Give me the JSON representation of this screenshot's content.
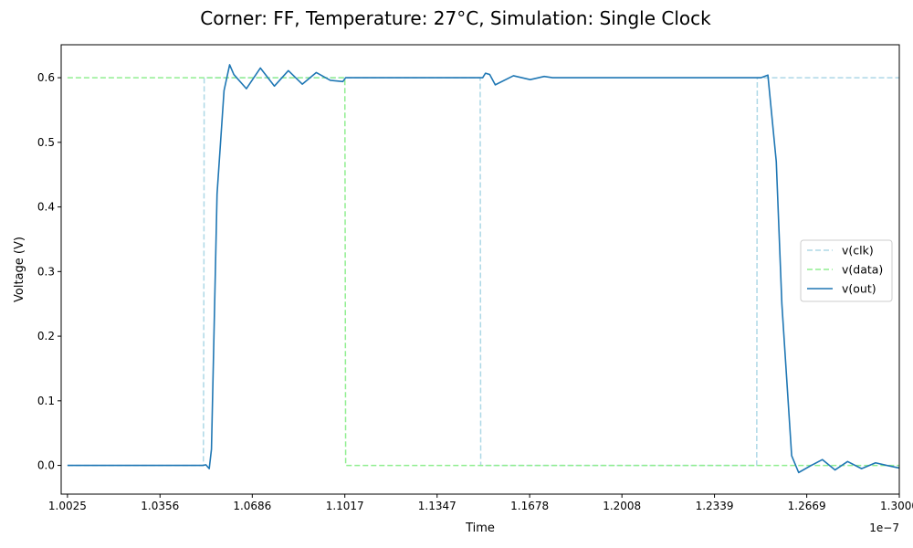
{
  "chart_data": {
    "type": "line",
    "title": "Corner: FF, Temperature: 27°C, Simulation: Single Clock",
    "xlabel": "Time",
    "ylabel": "Voltage (V)",
    "x_offset_label": "1e−7",
    "x_unit_scale": 1e-07,
    "xlim": [
      1.00025,
      1.3
    ],
    "ylim": [
      -0.0444,
      0.651
    ],
    "x_ticks": [
      1.0025,
      1.0356,
      1.0686,
      1.1017,
      1.1347,
      1.1678,
      1.2008,
      1.2339,
      1.2669,
      1.3
    ],
    "x_tick_labels": [
      "1.0025",
      "1.0356",
      "1.0686",
      "1.1017",
      "1.1347",
      "1.1678",
      "1.2008",
      "1.2339",
      "1.2669",
      "1.3000"
    ],
    "y_ticks": [
      0.0,
      0.1,
      0.2,
      0.3,
      0.4,
      0.5,
      0.6
    ],
    "y_tick_labels": [
      "0.0",
      "0.1",
      "0.2",
      "0.3",
      "0.4",
      "0.5",
      "0.6"
    ],
    "grid": false,
    "legend_position": "center-right",
    "series": [
      {
        "name": "v(clk)",
        "color": "#add8e6",
        "dash": true,
        "x": [
          1.0025,
          1.0511,
          1.0513,
          1.0514,
          1.1501,
          1.1503,
          1.249,
          1.2492,
          1.3
        ],
        "y": [
          0.0,
          0.0,
          0.3,
          0.6,
          0.6,
          0.0,
          0.0,
          0.6,
          0.6
        ]
      },
      {
        "name": "v(data)",
        "color": "#90ee90",
        "dash": true,
        "x": [
          1.0025,
          1.1017,
          1.102,
          1.3
        ],
        "y": [
          0.6,
          0.6,
          0.0,
          0.0
        ]
      },
      {
        "name": "v(out)",
        "color": "#1f77b4",
        "dash": false,
        "x": [
          1.0025,
          1.051,
          1.052,
          1.0532,
          1.054,
          1.056,
          1.0585,
          1.0605,
          1.062,
          1.0665,
          1.0715,
          1.0765,
          1.0815,
          1.0865,
          1.0915,
          1.0965,
          1.101,
          1.102,
          1.11,
          1.13,
          1.149,
          1.151,
          1.152,
          1.1535,
          1.1555,
          1.162,
          1.168,
          1.173,
          1.176,
          1.2,
          1.23,
          1.249,
          1.25,
          1.2505,
          1.253,
          1.256,
          1.258,
          1.2615,
          1.264,
          1.2685,
          1.2725,
          1.277,
          1.2815,
          1.2865,
          1.2915,
          1.2955,
          1.3
        ],
        "y": [
          0.0,
          0.0,
          0.001,
          -0.005,
          0.025,
          0.42,
          0.58,
          0.62,
          0.605,
          0.583,
          0.615,
          0.587,
          0.611,
          0.59,
          0.608,
          0.596,
          0.594,
          0.6,
          0.6,
          0.6,
          0.6,
          0.6,
          0.607,
          0.605,
          0.589,
          0.603,
          0.597,
          0.602,
          0.6,
          0.6,
          0.6,
          0.6,
          0.6,
          0.6,
          0.604,
          0.47,
          0.25,
          0.015,
          -0.011,
          0.0,
          0.009,
          -0.007,
          0.006,
          -0.005,
          0.004,
          0.0,
          -0.004
        ]
      }
    ]
  }
}
